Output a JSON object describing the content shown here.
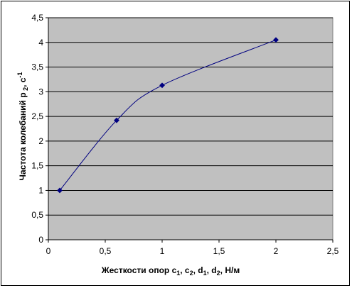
{
  "colors": {
    "plot_background": "#c0c0c0",
    "gridline": "#000000",
    "series": "#000080"
  },
  "chart_data": {
    "type": "scatter",
    "smoothed_line": true,
    "grid": "horizontal",
    "legend": "none",
    "xlabel": {
      "main": "Жесткости опор c",
      "parts": [
        "1",
        ", c",
        "2",
        ", d",
        "1",
        ", d",
        "2",
        ", Н/м"
      ]
    },
    "ylabel": {
      "main": "Частота колебаний p",
      "sub": " 2",
      "mid": ",  c",
      "sup": "-1"
    },
    "xlim": [
      0,
      2.5
    ],
    "ylim": [
      0,
      4.5
    ],
    "x_ticks": [
      0,
      0.5,
      1,
      1.5,
      2,
      2.5
    ],
    "x_tick_labels": [
      "0",
      "0,5",
      "1",
      "1,5",
      "2",
      "2,5"
    ],
    "y_ticks": [
      0,
      0.5,
      1,
      1.5,
      2,
      2.5,
      3,
      3.5,
      4,
      4.5
    ],
    "y_tick_labels": [
      "0",
      "0,5",
      "1",
      "1,5",
      "2",
      "2,5",
      "3",
      "3,5",
      "4",
      "4,5"
    ],
    "series": [
      {
        "x": [
          0.1,
          0.6,
          1.0,
          2.0
        ],
        "y": [
          1.0,
          2.42,
          3.13,
          4.05
        ]
      }
    ]
  }
}
